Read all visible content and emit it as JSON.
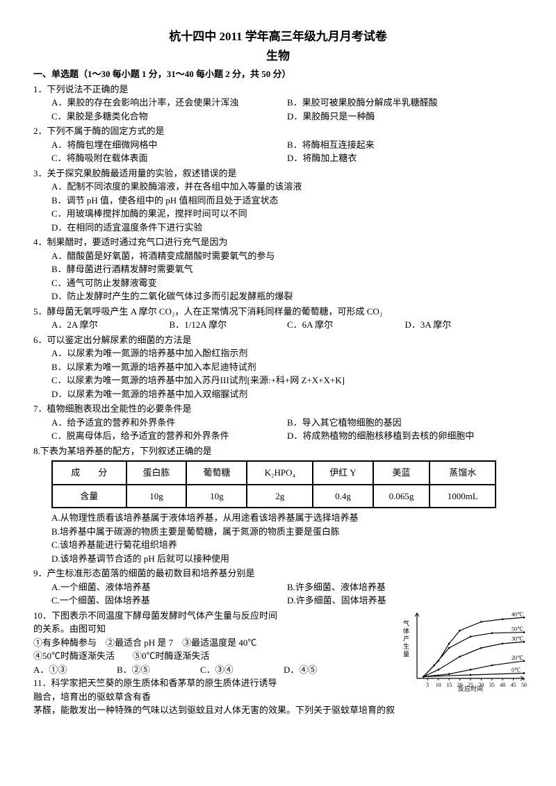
{
  "header": {
    "title": "杭十四中 2011 学年高三年级九月月考试卷",
    "subtitle": "生物"
  },
  "section1": {
    "title": "一、单选题（1～30 每小题 1 分，31～40 每小题 2 分，共 50 分）"
  },
  "q1": {
    "stem": "1．下列说法不正确的是",
    "a": "A．果胶的存在会影响出汁率，还会使果汁浑浊",
    "b": "B．果胶可被果胶酶分解成半乳糖醛酸",
    "c": "C．果胶是多糖类化合物",
    "d": "D．果胶酶只是一种酶"
  },
  "q2": {
    "stem": "2．下列不属于酶的固定方式的是",
    "a": "A．将酶包埋在细微网格中",
    "b": "B．将酶相互连接起来",
    "c": "C．将酶吸附在载体表面",
    "d": "D．将酶加上糖衣"
  },
  "q3": {
    "stem": "3．关于探究果胶酶最适用量的实验，叙述错误的是",
    "a": "A．配制不同浓度的果胶酶溶液，并在各组中加入等量的该溶液",
    "b": "B．调节 pH 值，使各组中的 pH 值相同而且处于适宜状态",
    "c": "C．用玻璃棒搅拌加酶的果泥，搅拌时间可以不同",
    "d": "D．在相同的适宜温度条件下进行实验"
  },
  "q4": {
    "stem": "4．制果醋时，要适时通过充气口进行充气是因为",
    "a": "A．醋酸菌是好氧菌，将酒精变成醋酸时需要氧气的参与",
    "b": "B．酵母菌进行酒精发酵时需要氧气",
    "c": "C．通气可防止发酵液霉变",
    "d": "D．防止发酵时产生的二氧化碳气体过多而引起发酵瓶的爆裂"
  },
  "q5": {
    "stem": "5．酵母菌无氧呼吸产生 A 摩尔 CO₂，人在正常情况下消耗同样量的葡萄糖，可形成 CO₂",
    "a": "A．2A 摩尔",
    "b": "B．1/12A 摩尔",
    "c": "C．6A 摩尔",
    "d": "D．3A 摩尔"
  },
  "q6": {
    "stem": "6．可以鉴定出分解尿素的细菌的方法是",
    "a": "A．以尿素为唯一氮源的培养基中加入酚红指示剂",
    "b": "B．以尿素为唯一氮源的培养基中加入本尼迪特试剂",
    "c": "C．以尿素为唯一氮源的培养基中加入苏丹III试剂[来源:+科+网 Z+X+X+K]",
    "d": "D．以尿素为唯一氮源的培养基中加入双缩脲试剂"
  },
  "q7": {
    "stem": "7．植物细胞表现出全能性的必要条件是",
    "a": "A．给予适宜的营养和外界条件",
    "b": "B．导入其它植物细胞的基因",
    "c": "C．脱离母体后，给予适宜的营养和外界条件",
    "d": "D．将成熟植物的细胞核移植到去核的卵细胞中"
  },
  "q8": {
    "stem": "8.下表为某培养基的配方，下列叙述正确的是",
    "table": {
      "headers": [
        "成　　分",
        "蛋白胨",
        "葡萄糖",
        "K₂HPO₄",
        "伊红 Y",
        "美蓝",
        "蒸馏水"
      ],
      "row_label": "含量",
      "values": [
        "10g",
        "10g",
        "2g",
        "0.4g",
        "0.065g",
        "1000mL"
      ]
    },
    "a": "A.从物理性质看该培养基属于液体培养基，从用途看该培养基属于选择培养基",
    "b": "B.培养基中属于碳源的物质主要是葡萄糖，属于氮源的物质主要是蛋白胨",
    "c": "C.该培养基能进行菊花组织培养",
    "d": "D.该培养基调节合适的 pH 后就可以接种使用"
  },
  "q9": {
    "stem": "9．产生标准形态菌落的细菌的最初数目和培养基分别是",
    "a": "A.一个细菌、液体培养基",
    "b": "B.许多细菌、液体培养基",
    "c": "C.一个细菌、固体培养基",
    "d": "D.许多细菌、固体培养基"
  },
  "q10": {
    "stem": "10．下图表示不同温度下酵母菌发酵时气体产生量与反应时间",
    "line2": "的关系。由图可知",
    "line3": "①有多种酶参与　②最适合 pH 是 7　③最适温度是 40℃",
    "line4": "④50℃时酶逐渐失活　　⑤0℃时酶逐渐失活",
    "a": "A．①③",
    "b": "B．②⑤",
    "c": "C．③④",
    "d": "D．④⑤",
    "chart": {
      "xlabel": "反应时间",
      "ylabel": "气体产生量",
      "xticks": [
        5,
        10,
        15,
        20,
        25,
        30,
        35,
        40,
        45,
        50
      ],
      "series": [
        {
          "label": "40℃",
          "points": [
            [
              3,
              2
            ],
            [
              10,
              20
            ],
            [
              15,
              40
            ],
            [
              20,
              55
            ],
            [
              30,
              65
            ],
            [
              40,
              68
            ],
            [
              50,
              70
            ]
          ]
        },
        {
          "label": "50℃",
          "points": [
            [
              3,
              2
            ],
            [
              8,
              15
            ],
            [
              15,
              35
            ],
            [
              25,
              48
            ],
            [
              35,
              52
            ],
            [
              50,
              53
            ]
          ]
        },
        {
          "label": "30℃",
          "points": [
            [
              3,
              2
            ],
            [
              10,
              10
            ],
            [
              20,
              25
            ],
            [
              30,
              35
            ],
            [
              40,
              40
            ],
            [
              50,
              42
            ]
          ]
        },
        {
          "label": "20℃",
          "points": [
            [
              3,
              2
            ],
            [
              15,
              5
            ],
            [
              25,
              10
            ],
            [
              35,
              15
            ],
            [
              50,
              20
            ]
          ]
        },
        {
          "label": "0℃",
          "points": [
            [
              3,
              2
            ],
            [
              25,
              4
            ],
            [
              50,
              6
            ]
          ]
        }
      ],
      "stroke": "#000000",
      "bg": "#ffffff"
    }
  },
  "q11": {
    "stem": "11．科学家把天竺葵的原生质体和香茅草的原生质体进行诱导",
    "line2": "融合，培育出的驱蚊草含有香",
    "line3": "茅醛，能散发出一种特殊的气味以达到驱蚊且对人体无害的效果。下列关于驱蚊草培育的叙"
  }
}
